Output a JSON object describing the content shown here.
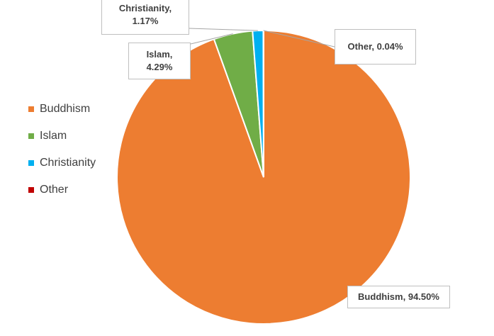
{
  "chart_data": {
    "type": "pie",
    "title": "",
    "categories": [
      "Buddhism",
      "Islam",
      "Christianity",
      "Other"
    ],
    "values": [
      94.5,
      4.29,
      1.17,
      0.04
    ],
    "colors": [
      "#ED7D31",
      "#70AD47",
      "#00B0F0",
      "#C00000"
    ],
    "data_labels": [
      {
        "name": "Buddhism,",
        "value": "94.50%"
      },
      {
        "name": "Islam,",
        "value": "4.29%"
      },
      {
        "name": "Christianity,",
        "value": "1.17%"
      },
      {
        "name": "Other,",
        "value": "0.04%"
      }
    ],
    "legend_position": "left"
  }
}
